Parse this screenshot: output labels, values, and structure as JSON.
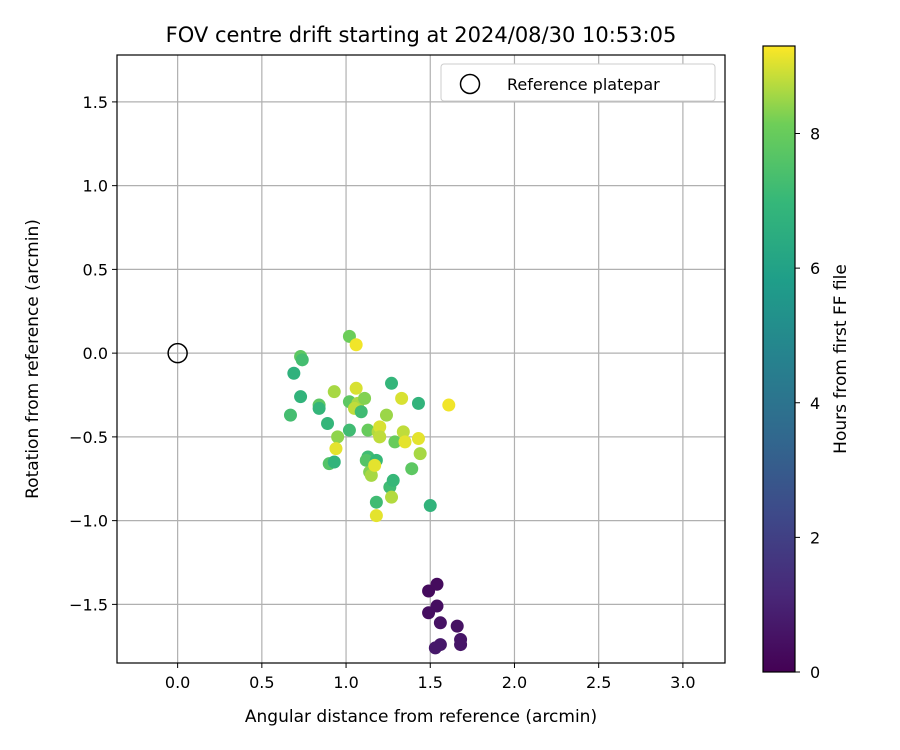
{
  "chart_data": {
    "type": "scatter",
    "title": "FOV centre drift starting at 2024/08/30 10:53:05",
    "xlabel": "Angular distance from reference (arcmin)",
    "ylabel": "Rotation from reference (arcmin)",
    "xlim": [
      -0.36,
      3.25
    ],
    "ylim": [
      -1.85,
      1.78
    ],
    "xticks": [
      0.0,
      0.5,
      1.0,
      1.5,
      2.0,
      2.5,
      3.0
    ],
    "xtick_labels": [
      "0.0",
      "0.5",
      "1.0",
      "1.5",
      "2.0",
      "2.5",
      "3.0"
    ],
    "yticks": [
      1.5,
      1.0,
      0.5,
      0.0,
      -0.5,
      -1.0,
      -1.5
    ],
    "ytick_labels": [
      "1.5",
      "1.0",
      "0.5",
      "0.0",
      "−0.5",
      "−1.0",
      "−1.5"
    ],
    "grid": true,
    "legend": {
      "placement": "top-right",
      "entries": [
        "Reference platepar"
      ]
    },
    "colorbar": {
      "label": "Hours from first FF file",
      "colormap": "viridis",
      "range": [
        0,
        9.3
      ],
      "ticks": [
        0,
        2,
        4,
        6,
        8
      ],
      "tick_labels": [
        "0",
        "2",
        "4",
        "6",
        "8"
      ]
    },
    "reference_point": {
      "name": "Reference platepar",
      "x": 0.0,
      "y": 0.0
    },
    "points": [
      {
        "x": 1.49,
        "y": -1.42,
        "c": 0.3
      },
      {
        "x": 1.54,
        "y": -1.38,
        "c": 0.3
      },
      {
        "x": 1.49,
        "y": -1.55,
        "c": 0.4
      },
      {
        "x": 1.54,
        "y": -1.51,
        "c": 0.4
      },
      {
        "x": 1.56,
        "y": -1.61,
        "c": 0.5
      },
      {
        "x": 1.66,
        "y": -1.63,
        "c": 0.5
      },
      {
        "x": 1.68,
        "y": -1.71,
        "c": 0.6
      },
      {
        "x": 1.68,
        "y": -1.74,
        "c": 0.6
      },
      {
        "x": 1.53,
        "y": -1.76,
        "c": 0.7
      },
      {
        "x": 1.56,
        "y": -1.74,
        "c": 0.7
      },
      {
        "x": 0.73,
        "y": -0.02,
        "c": 7.8
      },
      {
        "x": 0.74,
        "y": -0.04,
        "c": 7.3
      },
      {
        "x": 0.69,
        "y": -0.12,
        "c": 6.7
      },
      {
        "x": 0.73,
        "y": -0.26,
        "c": 6.8
      },
      {
        "x": 0.67,
        "y": -0.37,
        "c": 7.3
      },
      {
        "x": 0.84,
        "y": -0.31,
        "c": 7.8
      },
      {
        "x": 0.84,
        "y": -0.33,
        "c": 6.9
      },
      {
        "x": 0.89,
        "y": -0.42,
        "c": 6.9
      },
      {
        "x": 0.93,
        "y": -0.23,
        "c": 8.6
      },
      {
        "x": 0.95,
        "y": -0.5,
        "c": 8.4
      },
      {
        "x": 0.94,
        "y": -0.57,
        "c": 9.1
      },
      {
        "x": 0.9,
        "y": -0.66,
        "c": 7.6
      },
      {
        "x": 0.93,
        "y": -0.65,
        "c": 6.8
      },
      {
        "x": 1.02,
        "y": 0.1,
        "c": 8.1
      },
      {
        "x": 1.06,
        "y": 0.05,
        "c": 9.2
      },
      {
        "x": 1.06,
        "y": -0.21,
        "c": 9.0
      },
      {
        "x": 1.02,
        "y": -0.29,
        "c": 7.8
      },
      {
        "x": 1.07,
        "y": -0.3,
        "c": 8.6
      },
      {
        "x": 1.05,
        "y": -0.33,
        "c": 8.8
      },
      {
        "x": 1.11,
        "y": -0.27,
        "c": 8.3
      },
      {
        "x": 1.09,
        "y": -0.35,
        "c": 7.2
      },
      {
        "x": 1.02,
        "y": -0.46,
        "c": 7.2
      },
      {
        "x": 1.13,
        "y": -0.46,
        "c": 8.0
      },
      {
        "x": 1.13,
        "y": -0.62,
        "c": 7.2
      },
      {
        "x": 1.12,
        "y": -0.64,
        "c": 7.6
      },
      {
        "x": 1.18,
        "y": -0.64,
        "c": 7.0
      },
      {
        "x": 1.19,
        "y": -0.47,
        "c": 8.7
      },
      {
        "x": 1.2,
        "y": -0.44,
        "c": 9.0
      },
      {
        "x": 1.2,
        "y": -0.5,
        "c": 8.8
      },
      {
        "x": 1.14,
        "y": -0.71,
        "c": 8.3
      },
      {
        "x": 1.15,
        "y": -0.73,
        "c": 8.6
      },
      {
        "x": 1.17,
        "y": -0.67,
        "c": 9.1
      },
      {
        "x": 1.18,
        "y": -0.89,
        "c": 7.2
      },
      {
        "x": 1.18,
        "y": -0.97,
        "c": 9.1
      },
      {
        "x": 1.24,
        "y": -0.37,
        "c": 8.5
      },
      {
        "x": 1.27,
        "y": -0.18,
        "c": 6.9
      },
      {
        "x": 1.33,
        "y": -0.27,
        "c": 9.0
      },
      {
        "x": 1.26,
        "y": -0.8,
        "c": 7.2
      },
      {
        "x": 1.27,
        "y": -0.86,
        "c": 8.7
      },
      {
        "x": 1.28,
        "y": -0.76,
        "c": 7.0
      },
      {
        "x": 1.29,
        "y": -0.53,
        "c": 8.0
      },
      {
        "x": 1.34,
        "y": -0.47,
        "c": 8.8
      },
      {
        "x": 1.35,
        "y": -0.53,
        "c": 9.1
      },
      {
        "x": 1.39,
        "y": -0.69,
        "c": 7.8
      },
      {
        "x": 1.43,
        "y": -0.51,
        "c": 9.1
      },
      {
        "x": 1.44,
        "y": -0.6,
        "c": 8.6
      },
      {
        "x": 1.43,
        "y": -0.3,
        "c": 6.8
      },
      {
        "x": 1.5,
        "y": -0.91,
        "c": 6.8
      },
      {
        "x": 1.61,
        "y": -0.31,
        "c": 9.2
      }
    ]
  }
}
